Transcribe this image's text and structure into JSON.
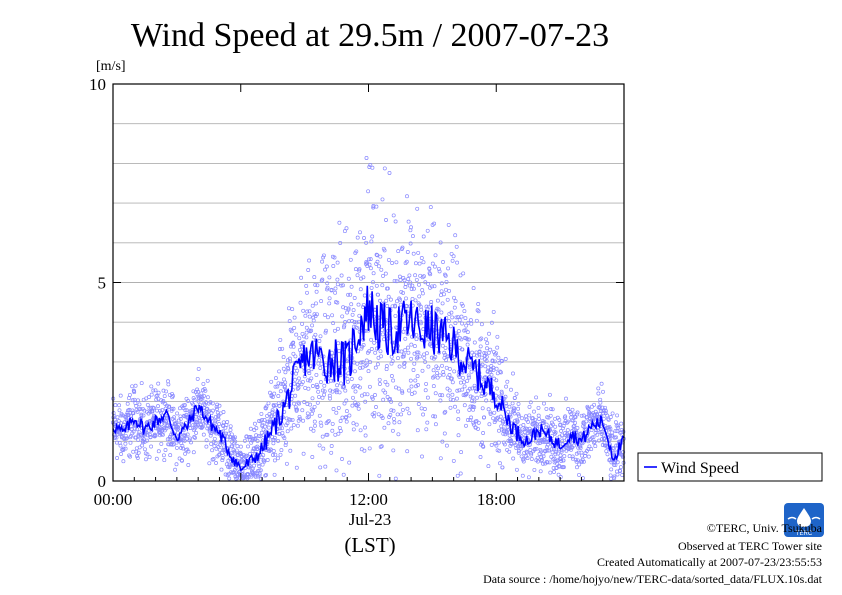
{
  "title": "Wind Speed at 29.5m / 2007-07-23",
  "chart_data": {
    "type": "line",
    "title": "Wind Speed at 29.5m / 2007-07-23",
    "ylabel": "[m/s]",
    "xlabel": "(LST)",
    "date_label": "Jul-23",
    "xlim": [
      0,
      24
    ],
    "ylim": [
      0,
      10
    ],
    "x_ticks": [
      0,
      6,
      12,
      18
    ],
    "x_tick_labels": [
      "00:00",
      "06:00",
      "12:00",
      "18:00"
    ],
    "y_ticks": [
      0,
      5,
      10
    ],
    "y_tick_labels": [
      "0",
      "5",
      "10"
    ],
    "grid": "horizontal every 1 m/s",
    "legend": "right",
    "series": [
      {
        "name": "Wind Speed",
        "color": "#0000ff",
        "scatter_color": "#8a8aff",
        "x": [
          0.0,
          0.5,
          1.0,
          1.5,
          2.0,
          2.5,
          3.0,
          3.5,
          4.0,
          4.5,
          5.0,
          5.5,
          6.0,
          6.5,
          7.0,
          7.5,
          8.0,
          8.5,
          9.0,
          9.5,
          10.0,
          10.5,
          11.0,
          11.5,
          12.0,
          12.5,
          13.0,
          13.5,
          14.0,
          14.5,
          15.0,
          15.5,
          16.0,
          16.5,
          17.0,
          17.5,
          18.0,
          18.5,
          19.0,
          19.5,
          20.0,
          20.5,
          21.0,
          21.5,
          22.0,
          22.5,
          23.0,
          23.5,
          24.0
        ],
        "values": [
          1.4,
          1.2,
          1.6,
          1.3,
          1.5,
          1.7,
          1.1,
          1.4,
          1.9,
          1.5,
          1.2,
          0.7,
          0.3,
          0.5,
          0.8,
          1.3,
          1.8,
          2.5,
          3.1,
          3.2,
          3.0,
          3.1,
          2.9,
          3.8,
          4.4,
          3.9,
          3.7,
          3.9,
          4.0,
          3.8,
          3.8,
          3.6,
          3.4,
          3.0,
          2.8,
          2.4,
          2.2,
          1.6,
          1.2,
          1.0,
          1.3,
          1.1,
          0.9,
          1.2,
          1.0,
          1.4,
          1.5,
          0.6,
          1.0
        ],
        "scatter_spread": [
          0.4,
          0.4,
          0.4,
          0.4,
          0.4,
          0.4,
          0.4,
          0.4,
          0.4,
          0.4,
          0.4,
          0.4,
          0.4,
          0.4,
          0.5,
          0.6,
          0.8,
          1.0,
          1.1,
          1.2,
          1.3,
          1.3,
          1.4,
          1.5,
          1.6,
          1.6,
          1.5,
          1.5,
          1.5,
          1.4,
          1.4,
          1.3,
          1.2,
          1.1,
          1.0,
          0.9,
          0.8,
          0.6,
          0.5,
          0.4,
          0.4,
          0.4,
          0.4,
          0.4,
          0.4,
          0.4,
          0.4,
          0.4,
          0.4
        ]
      }
    ]
  },
  "credits": {
    "copyright": "©TERC, Univ. Tsukuba",
    "observed": "Observed at TERC Tower site",
    "created": "Created Automatically at 2007-07-23/23:55:53",
    "source": "Data source : /home/hojyo/new/TERC-data/sorted_data/FLUX.10s.dat",
    "logo_text": "TERC"
  }
}
